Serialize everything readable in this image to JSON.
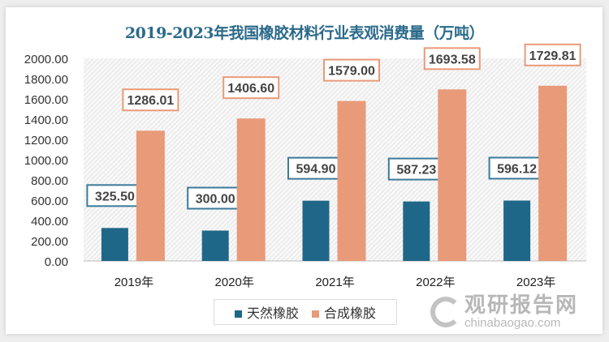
{
  "chart_data": {
    "type": "bar",
    "title": "2019-2023年我国橡胶材料行业表观消费量（万吨）",
    "categories": [
      "2019年",
      "2020年",
      "2021年",
      "2022年",
      "2023年"
    ],
    "series": [
      {
        "name": "天然橡胶",
        "color": "#1f6788",
        "values": [
          325.5,
          300.0,
          594.9,
          587.23,
          596.12
        ],
        "labels": [
          "325.50",
          "300.00",
          "594.90",
          "587.23",
          "596.12"
        ]
      },
      {
        "name": "合成橡胶",
        "color": "#e99a79",
        "values": [
          1286.01,
          1406.6,
          1579.0,
          1693.58,
          1729.81
        ],
        "labels": [
          "1286.01",
          "1406.60",
          "1579.00",
          "1693.58",
          "1729.81"
        ]
      }
    ],
    "ylim": [
      0,
      2000
    ],
    "yticks": [
      "0.00",
      "200.00",
      "400.00",
      "600.00",
      "800.00",
      "1000.00",
      "1200.00",
      "1400.00",
      "1600.00",
      "1800.00",
      "2000.00"
    ],
    "legend": "bottom",
    "grid": false
  },
  "watermark": {
    "cn": "观研报告网",
    "en": "chinabaogao.com"
  }
}
